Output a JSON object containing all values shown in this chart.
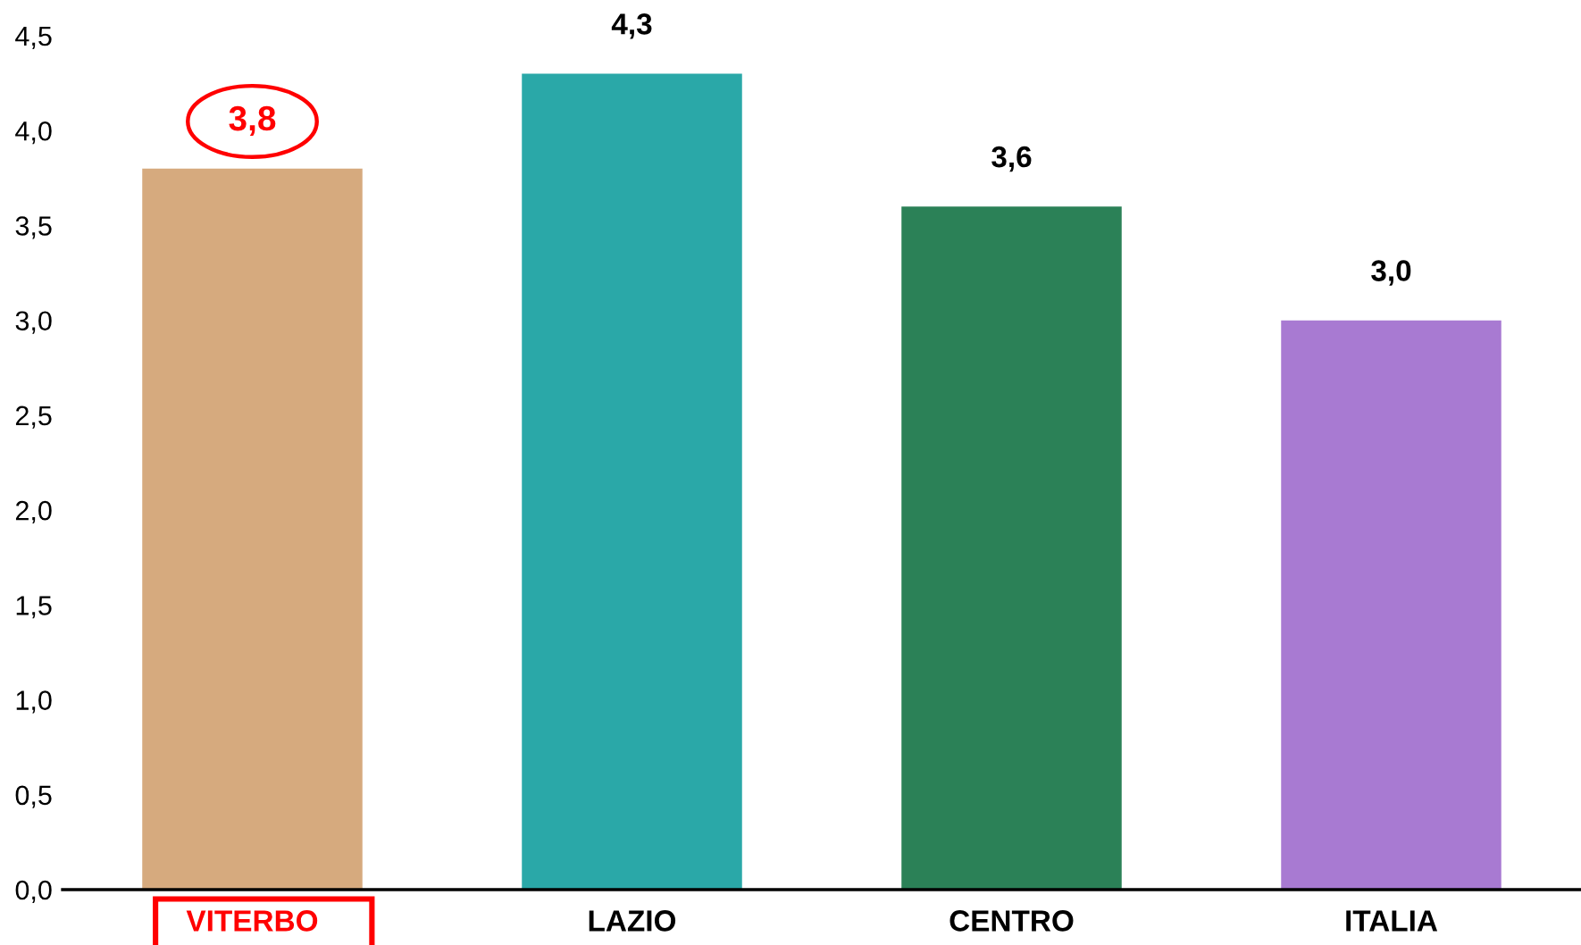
{
  "chart_data": {
    "type": "bar",
    "categories": [
      "VITERBO",
      "LAZIO",
      "CENTRO",
      "ITALIA"
    ],
    "values": [
      3.8,
      4.3,
      3.6,
      3.0
    ],
    "colors": [
      "#d6aa7e",
      "#2aa8a8",
      "#2b8157",
      "#a87ad2"
    ],
    "value_labels": [
      "3,8",
      "4,3",
      "3,6",
      "3,0"
    ],
    "ylim": [
      0,
      4.5
    ],
    "yticks": [
      {
        "value": 0,
        "label": "0,0"
      },
      {
        "value": 0.5,
        "label": "0,5"
      },
      {
        "value": 1,
        "label": "1,0"
      },
      {
        "value": 1.5,
        "label": "1,5"
      },
      {
        "value": 2,
        "label": "2,0"
      },
      {
        "value": 2.5,
        "label": "2,5"
      },
      {
        "value": 3,
        "label": "3,0"
      },
      {
        "value": 3.5,
        "label": "3,5"
      },
      {
        "value": 4,
        "label": "4,0"
      },
      {
        "value": 4.5,
        "label": "4,5"
      }
    ]
  }
}
